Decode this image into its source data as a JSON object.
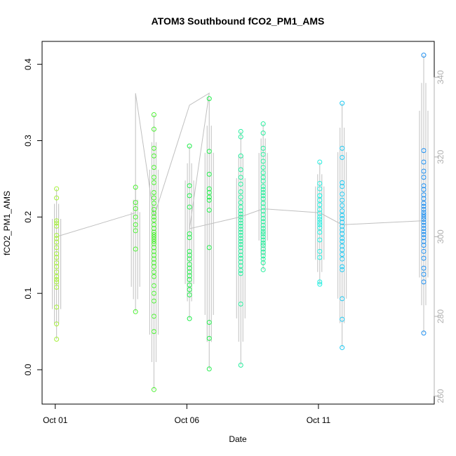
{
  "chart_data": {
    "type": "scatter",
    "title": "ATOM3 Southbound fCO2_PM1_AMS",
    "xlabel": "Date",
    "ylabel": "fCO2_PM1_AMS",
    "x_unit": "days since Oct 01",
    "xlim": [
      -0.5,
      14.4
    ],
    "ylim": [
      -0.045,
      0.43
    ],
    "y2lim": [
      258,
      349
    ],
    "x_ticks": [
      {
        "value": 0,
        "label": "Oct 01"
      },
      {
        "value": 5,
        "label": "Oct 06"
      },
      {
        "value": 10,
        "label": "Oct 11"
      }
    ],
    "y_ticks": [
      {
        "value": 0.0,
        "label": "0.0"
      },
      {
        "value": 0.1,
        "label": "0.1"
      },
      {
        "value": 0.2,
        "label": "0.2"
      },
      {
        "value": 0.3,
        "label": "0.3"
      },
      {
        "value": 0.4,
        "label": "0.4"
      }
    ],
    "y2_ticks": [
      {
        "value": 260,
        "label": "260"
      },
      {
        "value": 280,
        "label": "280"
      },
      {
        "value": 300,
        "label": "300"
      },
      {
        "value": 320,
        "label": "320"
      },
      {
        "value": 340,
        "label": "340"
      }
    ],
    "grid": false,
    "colors": {
      "line": "#c0c0c0",
      "point_palette": [
        "#a6f03c",
        "#4cf032",
        "#22ee4c",
        "#27ef9e",
        "#23efe0",
        "#1ec9f2",
        "#1e8ff0"
      ]
    },
    "series": [
      {
        "type": "scatter",
        "x": [
          0.05,
          0.05,
          0.05,
          0.05,
          0.05,
          0.05,
          0.05,
          0.05,
          0.05,
          0.05,
          0.05,
          0.05,
          0.05,
          0.05,
          0.05,
          0.05,
          0.05,
          0.05,
          0.05,
          0.05,
          0.05,
          3.05,
          3.05,
          3.05,
          3.05,
          3.05,
          3.05,
          3.05,
          3.05,
          3.75,
          3.75,
          3.75,
          3.75,
          3.75,
          3.75,
          3.75,
          3.75,
          3.75,
          3.75,
          3.75,
          3.75,
          3.75,
          3.75,
          3.75,
          3.75,
          3.75,
          3.75,
          3.75,
          3.75,
          3.75,
          3.75,
          3.75,
          3.75,
          3.75,
          3.75,
          3.75,
          3.75,
          3.75,
          3.75,
          3.75,
          3.75,
          3.75,
          3.75,
          3.75,
          3.75,
          5.1,
          5.1,
          5.1,
          5.1,
          5.1,
          5.1,
          5.1,
          5.1,
          5.1,
          5.1,
          5.1,
          5.1,
          5.1,
          5.1,
          5.1,
          5.1,
          5.1,
          5.1,
          5.85,
          5.85,
          5.85,
          5.85,
          5.85,
          5.85,
          5.85,
          5.85,
          5.85,
          5.85,
          5.85,
          5.85,
          7.05,
          7.05,
          7.05,
          7.05,
          7.05,
          7.05,
          7.05,
          7.05,
          7.05,
          7.05,
          7.05,
          7.05,
          7.05,
          7.05,
          7.05,
          7.05,
          7.05,
          7.05,
          7.05,
          7.05,
          7.05,
          7.05,
          7.05,
          7.05,
          7.05,
          7.05,
          7.05,
          7.05,
          7.05,
          7.05,
          7.05,
          7.05,
          7.9,
          7.9,
          7.9,
          7.9,
          7.9,
          7.9,
          7.9,
          7.9,
          7.9,
          7.9,
          7.9,
          7.9,
          7.9,
          7.9,
          7.9,
          7.9,
          7.9,
          7.9,
          7.9,
          7.9,
          7.9,
          7.9,
          7.9,
          7.9,
          7.9,
          7.9,
          7.9,
          7.9,
          7.9,
          7.9,
          7.9,
          7.9,
          7.9,
          7.9,
          10.05,
          10.05,
          10.05,
          10.05,
          10.05,
          10.05,
          10.05,
          10.05,
          10.05,
          10.05,
          10.05,
          10.05,
          10.05,
          10.05,
          10.05,
          10.05,
          10.05,
          10.05,
          10.05,
          10.05,
          10.9,
          10.9,
          10.9,
          10.9,
          10.9,
          10.9,
          10.9,
          10.9,
          10.9,
          10.9,
          10.9,
          10.9,
          10.9,
          10.9,
          10.9,
          10.9,
          10.9,
          10.9,
          10.9,
          10.9,
          10.9,
          10.9,
          10.9,
          10.9,
          10.9,
          10.9,
          14.0,
          14.0,
          14.0,
          14.0,
          14.0,
          14.0,
          14.0,
          14.0,
          14.0,
          14.0,
          14.0,
          14.0,
          14.0,
          14.0,
          14.0,
          14.0,
          14.0,
          14.0,
          14.0,
          14.0,
          14.0,
          14.0,
          14.0,
          14.0,
          14.0,
          14.0,
          14.0,
          14.0,
          14.0,
          14.0
        ],
        "y": [
          0.237,
          0.225,
          0.195,
          0.192,
          0.188,
          0.176,
          0.167,
          0.16,
          0.152,
          0.147,
          0.14,
          0.135,
          0.128,
          0.122,
          0.118,
          0.115,
          0.108,
          0.082,
          0.06,
          0.04,
          0.172,
          0.239,
          0.219,
          0.211,
          0.2,
          0.19,
          0.182,
          0.158,
          0.076,
          0.334,
          0.315,
          0.29,
          0.28,
          0.265,
          0.252,
          0.245,
          0.232,
          0.225,
          0.218,
          0.21,
          0.205,
          0.2,
          0.196,
          0.19,
          0.185,
          0.18,
          0.177,
          0.174,
          0.171,
          0.168,
          0.165,
          0.16,
          0.155,
          0.15,
          0.145,
          0.14,
          0.135,
          0.128,
          0.122,
          0.11,
          0.1,
          0.09,
          0.07,
          0.05,
          -0.026,
          0.293,
          0.241,
          0.228,
          0.213,
          0.178,
          0.155,
          0.15,
          0.145,
          0.138,
          0.133,
          0.128,
          0.123,
          0.118,
          0.111,
          0.105,
          0.098,
          0.067,
          0.173,
          0.355,
          0.286,
          0.256,
          0.237,
          0.232,
          0.226,
          0.222,
          0.209,
          0.16,
          0.062,
          0.041,
          0.001,
          0.312,
          0.305,
          0.28,
          0.262,
          0.252,
          0.243,
          0.233,
          0.226,
          0.219,
          0.213,
          0.208,
          0.204,
          0.2,
          0.196,
          0.192,
          0.188,
          0.184,
          0.18,
          0.176,
          0.172,
          0.168,
          0.164,
          0.16,
          0.155,
          0.15,
          0.146,
          0.141,
          0.136,
          0.13,
          0.126,
          0.086,
          0.006,
          0.322,
          0.31,
          0.29,
          0.282,
          0.273,
          0.265,
          0.258,
          0.252,
          0.247,
          0.24,
          0.236,
          0.232,
          0.228,
          0.224,
          0.218,
          0.213,
          0.208,
          0.203,
          0.198,
          0.194,
          0.189,
          0.185,
          0.181,
          0.178,
          0.174,
          0.17,
          0.166,
          0.163,
          0.158,
          0.154,
          0.149,
          0.145,
          0.14,
          0.131,
          0.272,
          0.244,
          0.237,
          0.228,
          0.222,
          0.216,
          0.21,
          0.205,
          0.2,
          0.197,
          0.193,
          0.19,
          0.186,
          0.18,
          0.17,
          0.155,
          0.147,
          0.115,
          0.112,
          0.228,
          0.349,
          0.29,
          0.245,
          0.24,
          0.23,
          0.222,
          0.215,
          0.208,
          0.202,
          0.198,
          0.193,
          0.188,
          0.183,
          0.178,
          0.172,
          0.168,
          0.162,
          0.157,
          0.151,
          0.145,
          0.135,
          0.131,
          0.093,
          0.066,
          0.029,
          0.278,
          0.412,
          0.287,
          0.272,
          0.26,
          0.252,
          0.241,
          0.236,
          0.229,
          0.224,
          0.218,
          0.214,
          0.21,
          0.206,
          0.203,
          0.2,
          0.197,
          0.193,
          0.189,
          0.185,
          0.181,
          0.177,
          0.173,
          0.168,
          0.163,
          0.155,
          0.146,
          0.133,
          0.125,
          0.115,
          0.048
        ]
      },
      {
        "type": "line",
        "axis": "right",
        "x": [
          0.05,
          3.05,
          3.05,
          3.75,
          5.1,
          5.85,
          5.1,
          7.05,
          7.9,
          10.05,
          10.9,
          14.0
        ],
        "y": [
          300,
          306,
          336,
          305,
          333,
          336,
          302,
          305,
          307,
          306,
          303,
          304
        ]
      }
    ]
  }
}
